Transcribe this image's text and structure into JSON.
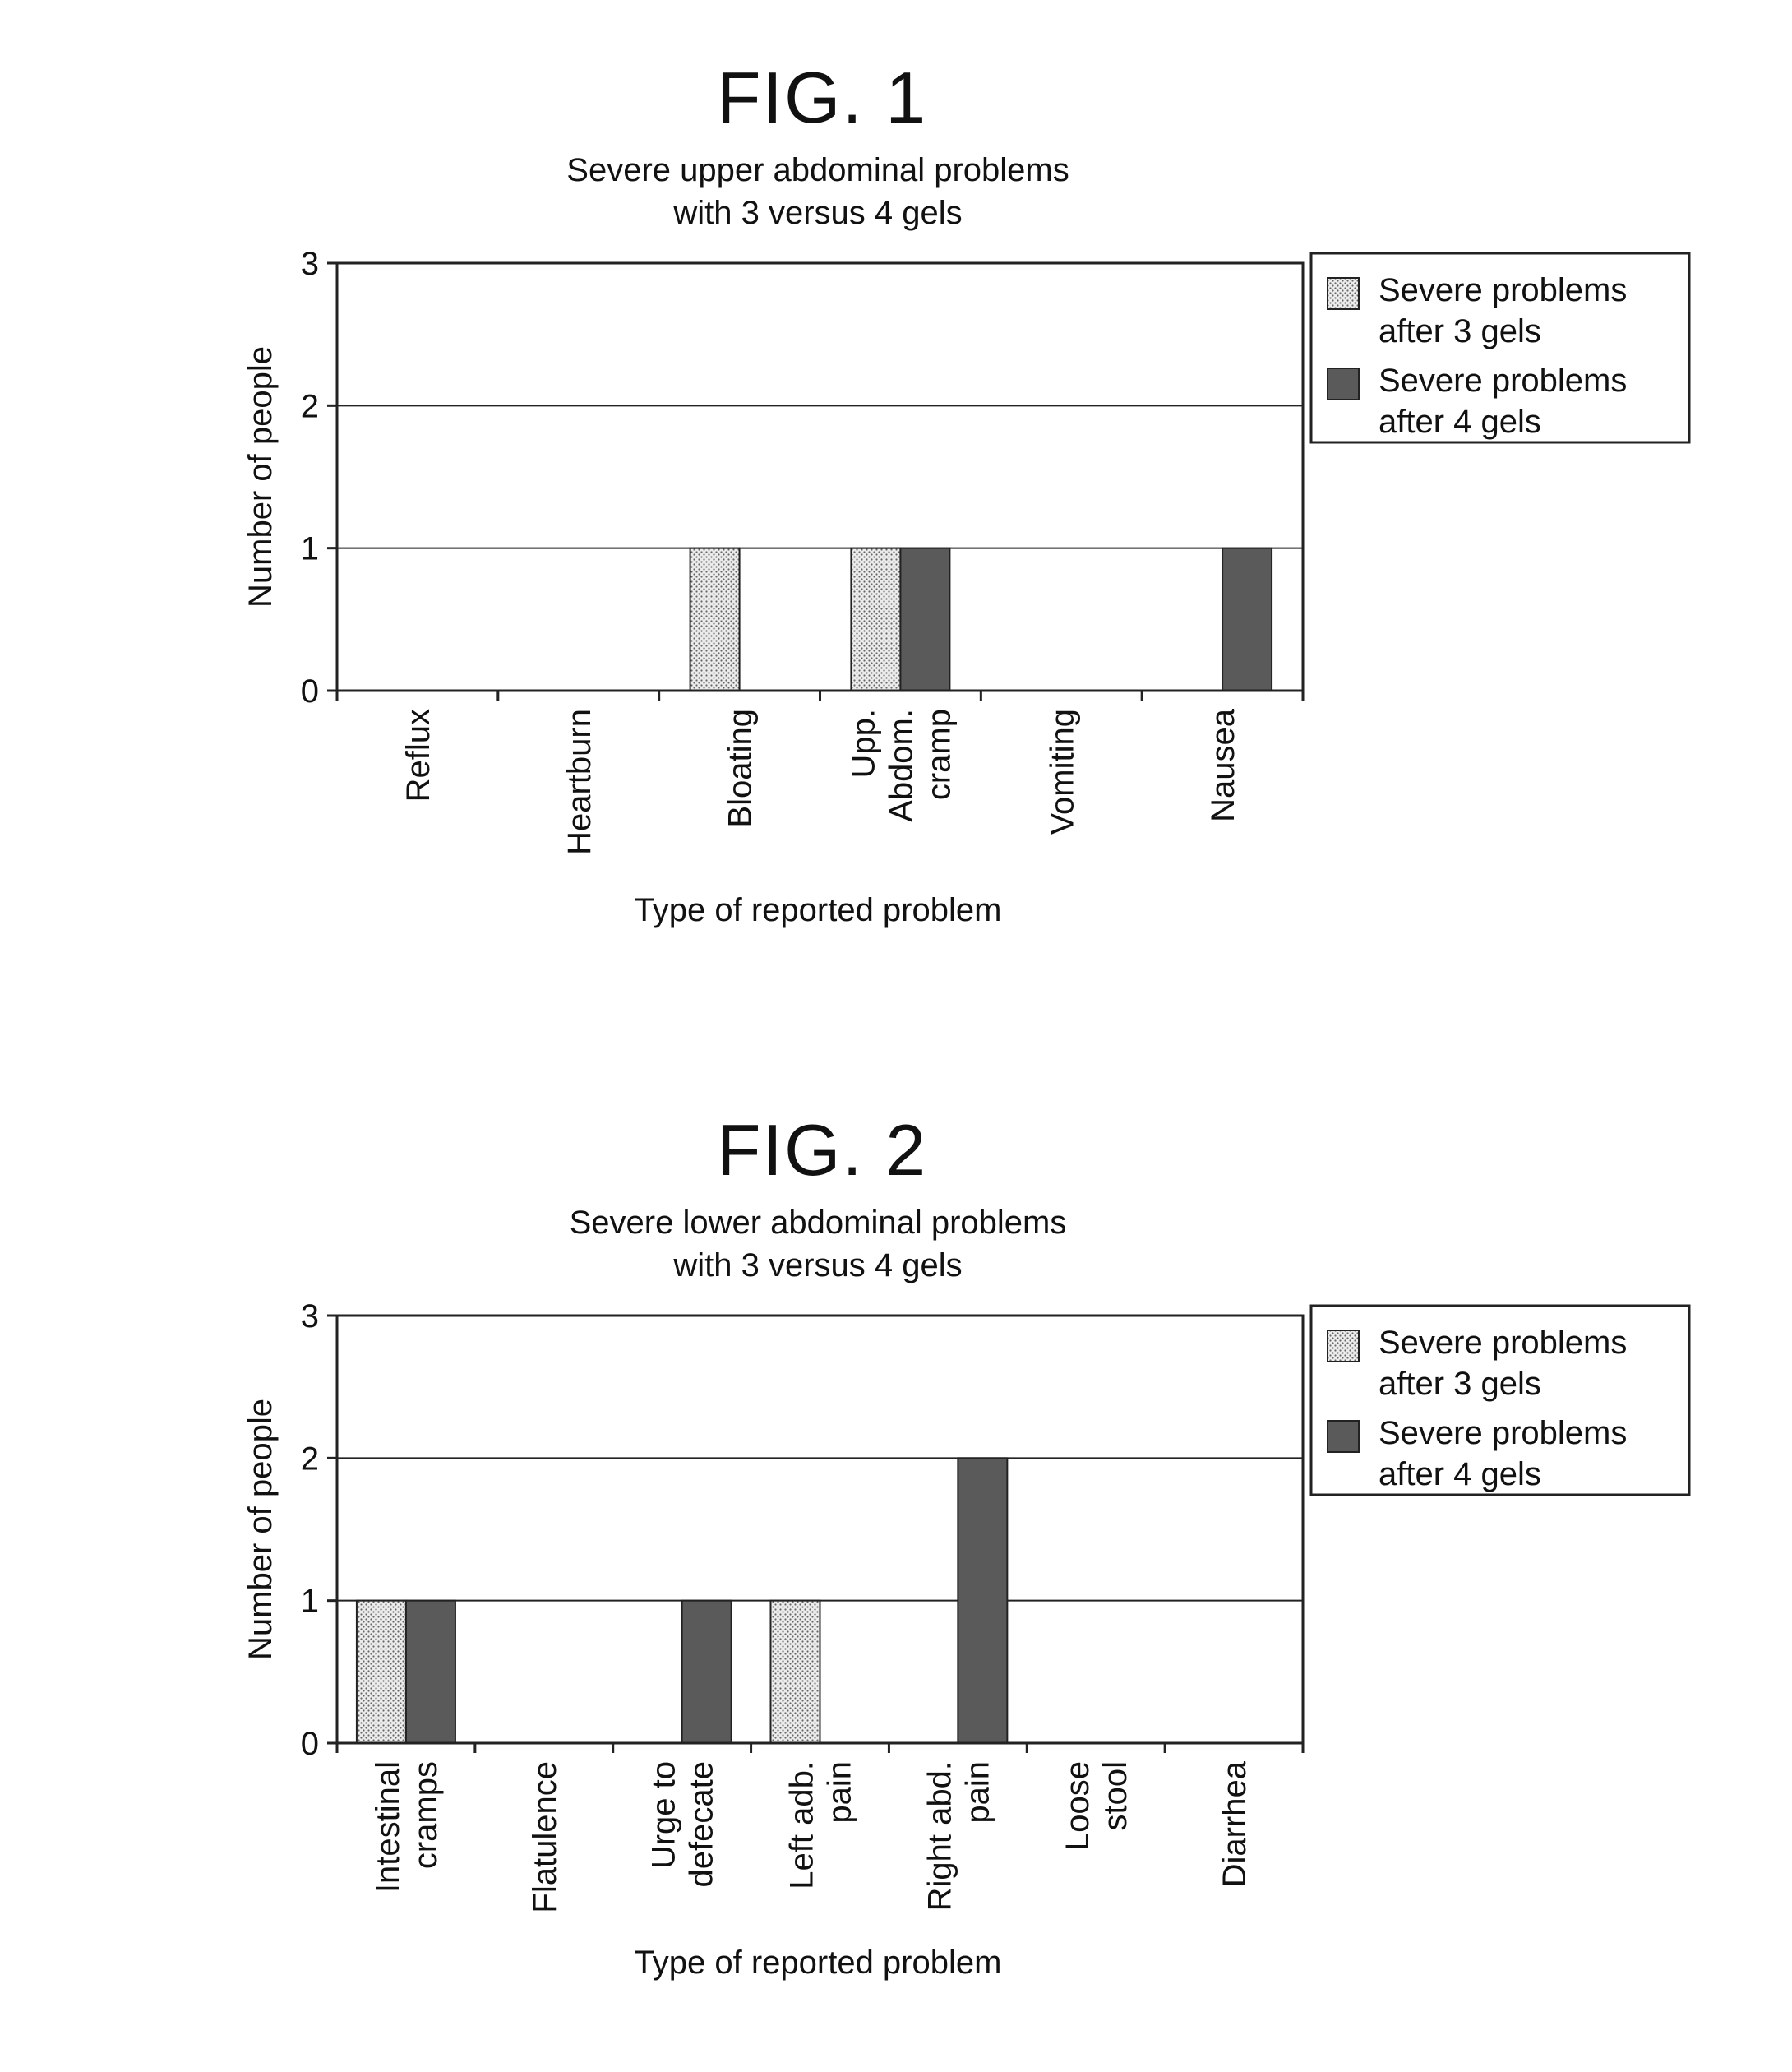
{
  "figures": [
    {
      "label": "FIG. 1",
      "chart_data": {
        "type": "bar",
        "title_lines": [
          "Severe upper abdominal problems",
          "with 3 versus 4 gels"
        ],
        "xlabel": "Type of reported problem",
        "ylabel": "Number of people",
        "ylim": [
          0,
          3
        ],
        "yticks": [
          0,
          1,
          2,
          3
        ],
        "grid": true,
        "legend_placement": "right",
        "categories": [
          [
            "Reflux"
          ],
          [
            "Heartburn"
          ],
          [
            "Bloating"
          ],
          [
            "Upp.",
            "Abdom.",
            "cramp"
          ],
          [
            "Vomiting"
          ],
          [
            "Nausea"
          ]
        ],
        "series": [
          {
            "name_lines": [
              "Severe problems",
              "after 3 gels"
            ],
            "values": [
              0,
              0,
              1,
              1,
              0,
              0
            ],
            "color": "#e6e6e6"
          },
          {
            "name_lines": [
              "Severe problems",
              "after 4 gels"
            ],
            "values": [
              0,
              0,
              0,
              1,
              0,
              1
            ],
            "color": "#5a5a5a"
          }
        ]
      }
    },
    {
      "label": "FIG. 2",
      "chart_data": {
        "type": "bar",
        "title_lines": [
          "Severe lower abdominal problems",
          "with 3 versus 4 gels"
        ],
        "xlabel": "Type of reported problem",
        "ylabel": "Number of people",
        "ylim": [
          0,
          3
        ],
        "yticks": [
          0,
          1,
          2,
          3
        ],
        "grid": true,
        "legend_placement": "right",
        "categories": [
          [
            "Intestinal",
            "cramps"
          ],
          [
            "Flatulence"
          ],
          [
            "Urge to",
            "defecate"
          ],
          [
            "Left adb.",
            "pain"
          ],
          [
            "Right abd.",
            "pain"
          ],
          [
            "Loose",
            "stool"
          ],
          [
            "Diarrhea"
          ]
        ],
        "series": [
          {
            "name_lines": [
              "Severe problems",
              "after 3 gels"
            ],
            "values": [
              1,
              0,
              0,
              1,
              0,
              0,
              0
            ],
            "color": "#e6e6e6"
          },
          {
            "name_lines": [
              "Severe problems",
              "after 4 gels"
            ],
            "values": [
              1,
              0,
              1,
              0,
              2,
              0,
              0
            ],
            "color": "#5a5a5a"
          }
        ]
      }
    }
  ]
}
